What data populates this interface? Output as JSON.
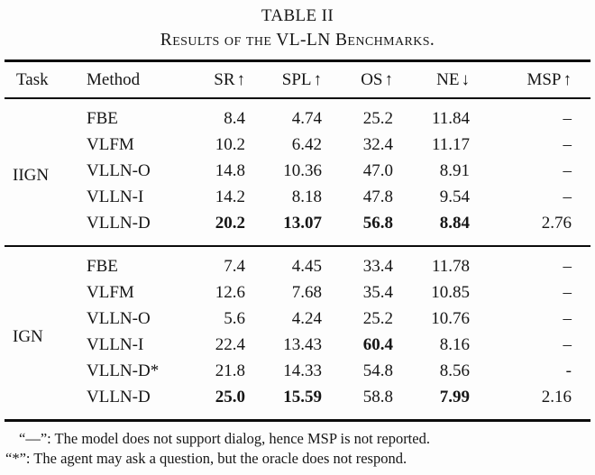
{
  "table": {
    "title": "TABLE II",
    "subtitle": "Results of the VL-LN Benchmarks.",
    "columns": [
      {
        "label": "Task",
        "arrow": ""
      },
      {
        "label": "Method",
        "arrow": ""
      },
      {
        "label": "SR",
        "arrow": "↑"
      },
      {
        "label": "SPL",
        "arrow": "↑"
      },
      {
        "label": "OS",
        "arrow": "↑"
      },
      {
        "label": "NE",
        "arrow": "↓"
      },
      {
        "label": "MSP",
        "arrow": "↑"
      }
    ],
    "groups": [
      {
        "task": "IIGN",
        "rows": [
          {
            "method": "FBE",
            "values": [
              "8.4",
              "4.74",
              "25.2",
              "11.84",
              "–"
            ],
            "bold": []
          },
          {
            "method": "VLFM",
            "values": [
              "10.2",
              "6.42",
              "32.4",
              "11.17",
              "–"
            ],
            "bold": []
          },
          {
            "method": "VLLN-O",
            "values": [
              "14.8",
              "10.36",
              "47.0",
              "8.91",
              "–"
            ],
            "bold": []
          },
          {
            "method": "VLLN-I",
            "values": [
              "14.2",
              "8.18",
              "47.8",
              "9.54",
              "–"
            ],
            "bold": []
          },
          {
            "method": "VLLN-D",
            "values": [
              "20.2",
              "13.07",
              "56.8",
              "8.84",
              "2.76"
            ],
            "bold": [
              0,
              1,
              2,
              3
            ]
          }
        ]
      },
      {
        "task": "IGN",
        "rows": [
          {
            "method": "FBE",
            "values": [
              "7.4",
              "4.45",
              "33.4",
              "11.78",
              "–"
            ],
            "bold": []
          },
          {
            "method": "VLFM",
            "values": [
              "12.6",
              "7.68",
              "35.4",
              "10.85",
              "–"
            ],
            "bold": []
          },
          {
            "method": "VLLN-O",
            "values": [
              "5.6",
              "4.24",
              "25.2",
              "10.76",
              "–"
            ],
            "bold": []
          },
          {
            "method": "VLLN-I",
            "values": [
              "22.4",
              "13.43",
              "60.4",
              "8.16",
              "–"
            ],
            "bold": [
              2
            ]
          },
          {
            "method": "VLLN-D*",
            "values": [
              "21.8",
              "14.33",
              "54.8",
              "8.56",
              "-"
            ],
            "bold": []
          },
          {
            "method": "VLLN-D",
            "values": [
              "25.0",
              "15.59",
              "58.8",
              "7.99",
              "2.16"
            ],
            "bold": [
              0,
              1,
              3
            ]
          }
        ]
      }
    ]
  },
  "footnotes": [
    "“—”: The model does not support dialog, hence MSP is not reported.",
    "“*”: The agent may ask a question, but the oracle does not respond."
  ],
  "colors": {
    "text": "#161616",
    "rule": "#0c0c0c",
    "background": "#fdfdfd"
  }
}
